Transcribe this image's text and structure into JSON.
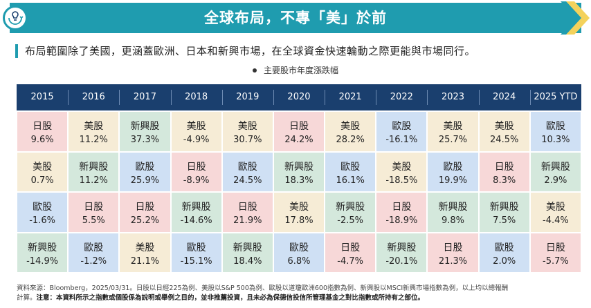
{
  "banner": {
    "title": "全球布局，不專「美」於前"
  },
  "subtitle": "布局範圍除了美國，更涵蓋歐洲、日本和新興市場，在全球資金快速輪動之際更能與市場同行。",
  "caption": "主要股市年度漲跌幅",
  "colors": {
    "美股": "#f6ecd6",
    "日股": "#f7d8d8",
    "歐股": "#cfe0f4",
    "新興股": "#d4e8dc",
    "header": "#1a3f6e",
    "accent": "#1f9caf"
  },
  "chart_data": {
    "type": "table",
    "columns": [
      "2015",
      "2016",
      "2017",
      "2018",
      "2019",
      "2020",
      "2021",
      "2022",
      "2023",
      "2024",
      "2025 YTD"
    ],
    "rows": [
      [
        {
          "market": "日股",
          "value": "9.6%"
        },
        {
          "market": "美股",
          "value": "11.2%"
        },
        {
          "market": "新興股",
          "value": "37.3%"
        },
        {
          "market": "美股",
          "value": "-4.9%"
        },
        {
          "market": "美股",
          "value": "30.7%"
        },
        {
          "market": "日股",
          "value": "24.2%"
        },
        {
          "market": "美股",
          "value": "28.2%"
        },
        {
          "market": "歐股",
          "value": "-16.1%"
        },
        {
          "market": "美股",
          "value": "25.7%"
        },
        {
          "market": "美股",
          "value": "24.5%"
        },
        {
          "market": "歐股",
          "value": "10.3%"
        }
      ],
      [
        {
          "market": "美股",
          "value": "0.7%"
        },
        {
          "market": "新興股",
          "value": "11.2%"
        },
        {
          "market": "歐股",
          "value": "25.9%"
        },
        {
          "market": "日股",
          "value": "-8.9%"
        },
        {
          "market": "歐股",
          "value": "24.5%"
        },
        {
          "market": "新興股",
          "value": "18.3%"
        },
        {
          "market": "歐股",
          "value": "16.1%"
        },
        {
          "market": "美股",
          "value": "-18.5%"
        },
        {
          "market": "歐股",
          "value": "19.9%"
        },
        {
          "market": "日股",
          "value": "8.3%"
        },
        {
          "market": "新興股",
          "value": "2.9%"
        }
      ],
      [
        {
          "market": "歐股",
          "value": "-1.6%"
        },
        {
          "market": "日股",
          "value": "5.5%"
        },
        {
          "market": "日股",
          "value": "25.2%"
        },
        {
          "market": "新興股",
          "value": "-14.6%"
        },
        {
          "market": "日股",
          "value": "21.9%"
        },
        {
          "market": "美股",
          "value": "17.8%"
        },
        {
          "market": "新興股",
          "value": "-2.5%"
        },
        {
          "market": "日股",
          "value": "-18.9%"
        },
        {
          "market": "新興股",
          "value": "9.8%"
        },
        {
          "market": "新興股",
          "value": "7.5%"
        },
        {
          "market": "美股",
          "value": "-4.4%"
        }
      ],
      [
        {
          "market": "新興股",
          "value": "-14.9%"
        },
        {
          "market": "歐股",
          "value": "-1.2%"
        },
        {
          "market": "美股",
          "value": "21.1%"
        },
        {
          "market": "歐股",
          "value": "-15.1%"
        },
        {
          "market": "新興股",
          "value": "18.4%"
        },
        {
          "market": "歐股",
          "value": "6.8%"
        },
        {
          "market": "日股",
          "value": "-4.7%"
        },
        {
          "market": "新興股",
          "value": "-20.1%"
        },
        {
          "market": "日股",
          "value": "21.3%"
        },
        {
          "market": "歐股",
          "value": "2.0%"
        },
        {
          "market": "日股",
          "value": "-5.7%"
        }
      ]
    ]
  },
  "footnote": {
    "line1": "資料來源：Bloomberg，2025/03/31。日股以日經225為例、美股以S&P 500為例、歐股以道瓊歐洲600指數為例、新興股以MSCI新興市場指數為例，以上均以總報酬",
    "line2_prefix": "計算。",
    "line2_bold": "注意：本資料所示之指數或個股係為說明或舉例之目的，並非推薦投資，且未必為保德信投信所管理基金之對比指數或所持有之部位。"
  }
}
